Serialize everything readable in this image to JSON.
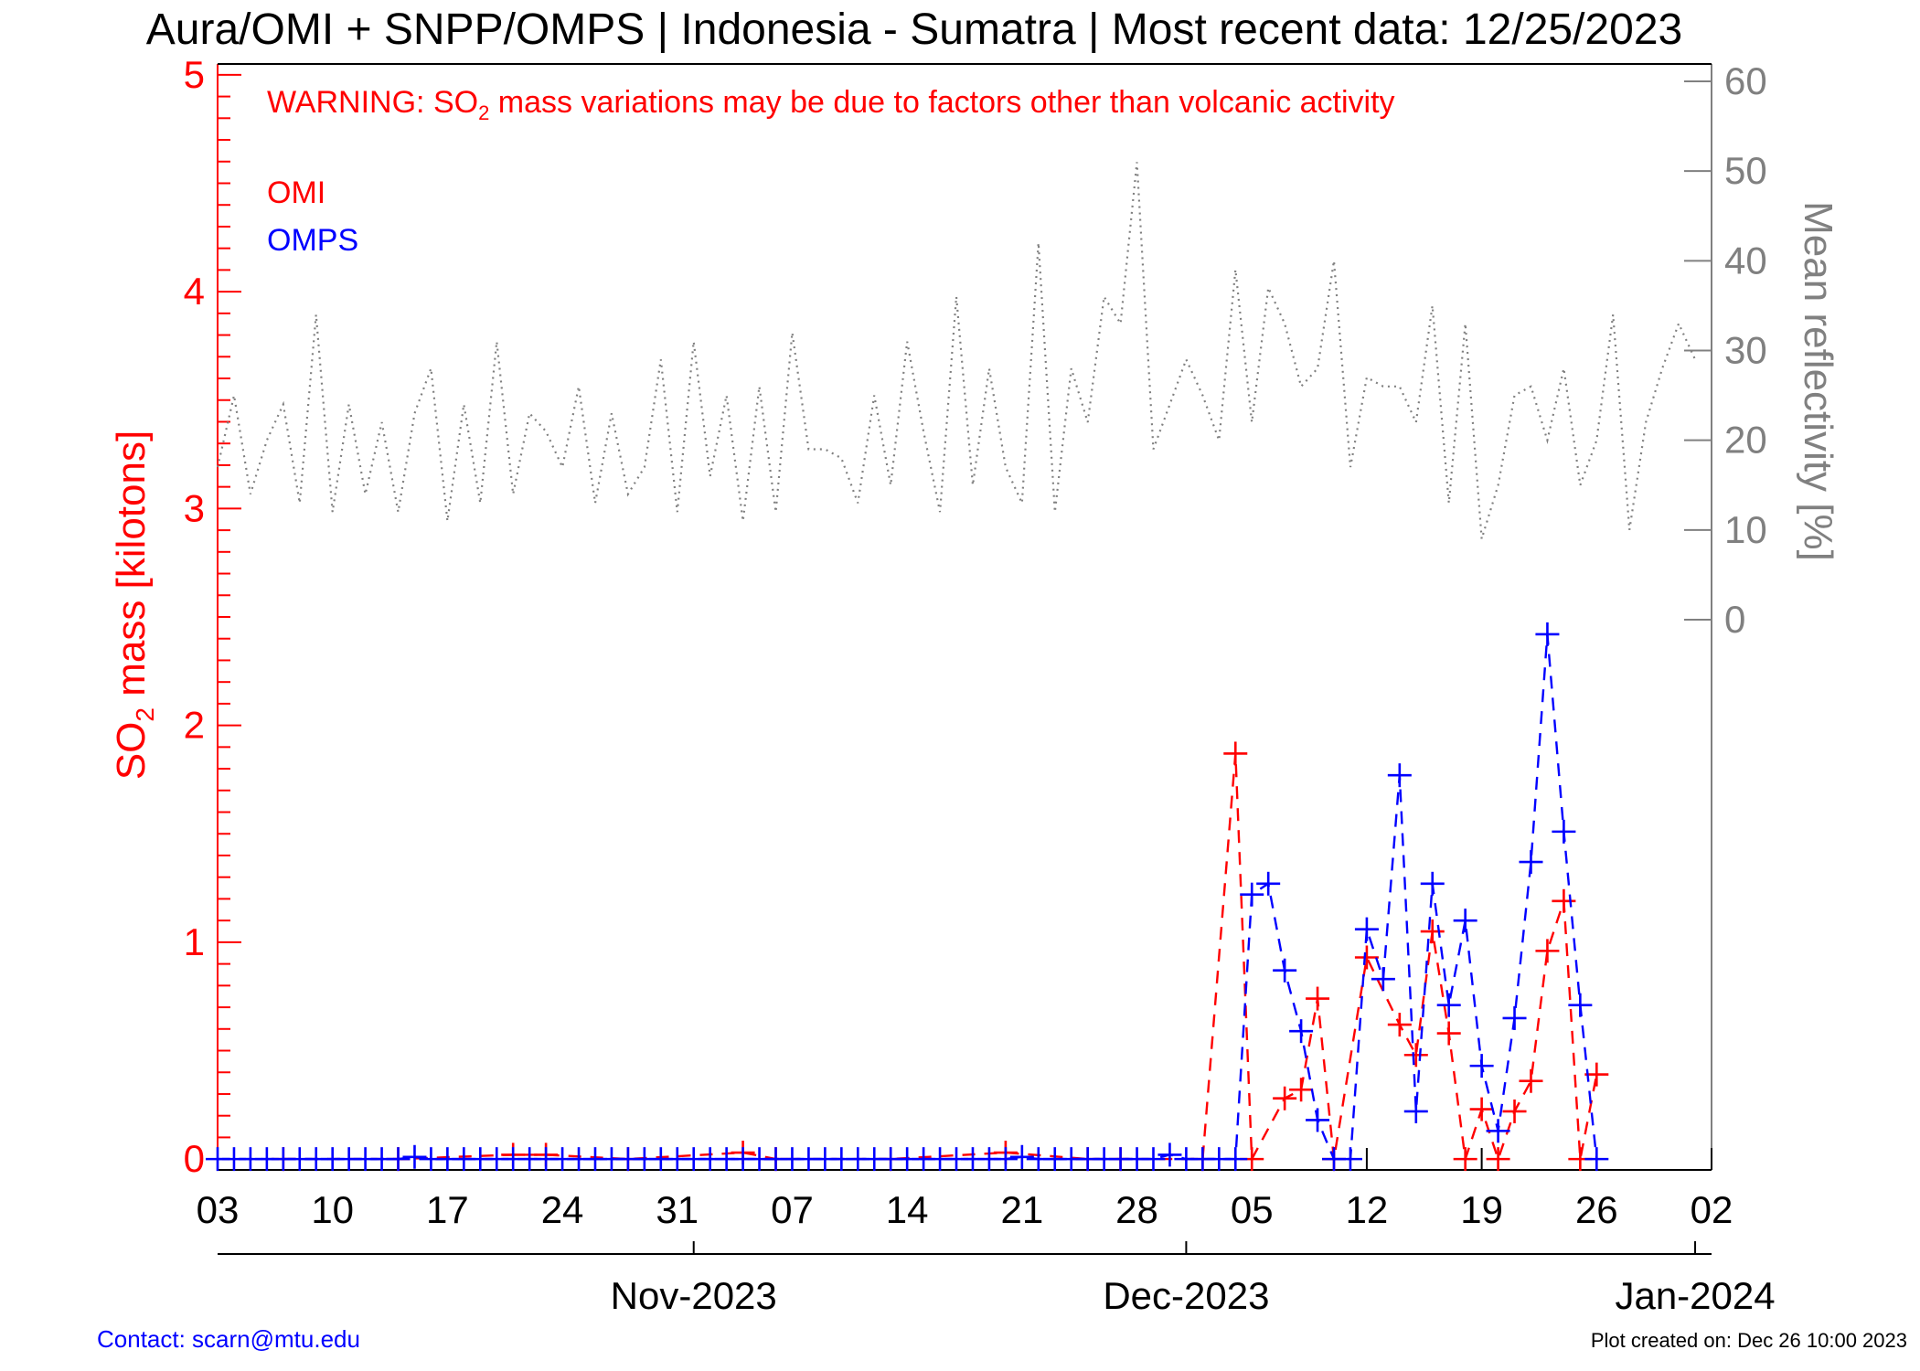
{
  "chart_data": {
    "type": "line",
    "title": "Aura/OMI + SNPP/OMPS | Indonesia - Sumatra | Most recent data: 12/25/2023",
    "warning": {
      "prefix": "WARNING: SO",
      "subscript": "2",
      "suffix": " mass variations may be due to factors other than volcanic activity"
    },
    "ylabel": {
      "prefix": "SO",
      "subscript": "2",
      "suffix": " mass [kilotons]"
    },
    "y2label": "Mean reflectivity [%]",
    "ylim": [
      -0.05,
      5.05
    ],
    "y2lim": [
      0,
      60
    ],
    "y_ticks": [
      "0",
      "1",
      "2",
      "3",
      "4",
      "5"
    ],
    "y2_ticks": [
      "0",
      "10",
      "20",
      "30",
      "40",
      "50",
      "60"
    ],
    "xlim": [
      "2023-10-03",
      "2024-01-02"
    ],
    "x_ticks": [
      {
        "date": "2023-10-03",
        "label": "03"
      },
      {
        "date": "2023-10-10",
        "label": "10"
      },
      {
        "date": "2023-10-17",
        "label": "17"
      },
      {
        "date": "2023-10-24",
        "label": "24"
      },
      {
        "date": "2023-10-31",
        "label": "31"
      },
      {
        "date": "2023-11-07",
        "label": "07"
      },
      {
        "date": "2023-11-14",
        "label": "14"
      },
      {
        "date": "2023-11-21",
        "label": "21"
      },
      {
        "date": "2023-11-28",
        "label": "28"
      },
      {
        "date": "2023-12-05",
        "label": "05"
      },
      {
        "date": "2023-12-12",
        "label": "12"
      },
      {
        "date": "2023-12-19",
        "label": "19"
      },
      {
        "date": "2023-12-26",
        "label": "26"
      },
      {
        "date": "2024-01-02",
        "label": "02"
      }
    ],
    "month_ticks": [
      {
        "date": "2023-11-01",
        "label": "Nov-2023"
      },
      {
        "date": "2023-12-01",
        "label": "Dec-2023"
      },
      {
        "date": "2024-01-01",
        "label": "Jan-2024"
      }
    ],
    "legend": [
      {
        "name": "OMI",
        "color": "#ff0000"
      },
      {
        "name": "OMPS",
        "color": "#0000ff"
      }
    ],
    "series": [
      {
        "name": "OMI",
        "color": "#ff0000",
        "points": [
          [
            "2023-10-07",
            0.0
          ],
          [
            "2023-10-14",
            0.0
          ],
          [
            "2023-10-21",
            0.02
          ],
          [
            "2023-10-23",
            0.02
          ],
          [
            "2023-10-28",
            0.0
          ],
          [
            "2023-11-04",
            0.03
          ],
          [
            "2023-11-06",
            0.0
          ],
          [
            "2023-11-13",
            0.0
          ],
          [
            "2023-11-20",
            0.03
          ],
          [
            "2023-11-25",
            0.0
          ],
          [
            "2023-11-27",
            0.0
          ],
          [
            "2023-12-02",
            0.0
          ],
          [
            "2023-12-04",
            1.87
          ],
          [
            "2023-12-05",
            0.0
          ],
          [
            "2023-12-07",
            0.28
          ],
          [
            "2023-12-08",
            0.32
          ],
          [
            "2023-12-09",
            0.74
          ],
          [
            "2023-12-10",
            0.0
          ],
          [
            "2023-12-12",
            0.93
          ],
          [
            "2023-12-14",
            0.62
          ],
          [
            "2023-12-15",
            0.48
          ],
          [
            "2023-12-16",
            1.05
          ],
          [
            "2023-12-17",
            0.58
          ],
          [
            "2023-12-18",
            0.0
          ],
          [
            "2023-12-19",
            0.23
          ],
          [
            "2023-12-20",
            0.0
          ],
          [
            "2023-12-21",
            0.22
          ],
          [
            "2023-12-22",
            0.36
          ],
          [
            "2023-12-23",
            0.96
          ],
          [
            "2023-12-24",
            1.19
          ],
          [
            "2023-12-25",
            0.0
          ],
          [
            "2023-12-26",
            0.39
          ]
        ]
      },
      {
        "name": "OMPS",
        "color": "#0000ff",
        "points": [
          [
            "2023-10-03",
            0.0
          ],
          [
            "2023-10-04",
            0.0
          ],
          [
            "2023-10-05",
            0.0
          ],
          [
            "2023-10-06",
            0.0
          ],
          [
            "2023-10-07",
            0.0
          ],
          [
            "2023-10-08",
            0.0
          ],
          [
            "2023-10-09",
            0.0
          ],
          [
            "2023-10-10",
            0.0
          ],
          [
            "2023-10-11",
            0.0
          ],
          [
            "2023-10-12",
            0.0
          ],
          [
            "2023-10-13",
            0.0
          ],
          [
            "2023-10-14",
            0.0
          ],
          [
            "2023-10-15",
            0.01
          ],
          [
            "2023-10-16",
            0.0
          ],
          [
            "2023-10-17",
            0.0
          ],
          [
            "2023-10-18",
            0.0
          ],
          [
            "2023-10-19",
            0.0
          ],
          [
            "2023-10-20",
            0.0
          ],
          [
            "2023-10-21",
            0.0
          ],
          [
            "2023-10-22",
            0.0
          ],
          [
            "2023-10-23",
            0.0
          ],
          [
            "2023-10-24",
            0.0
          ],
          [
            "2023-10-25",
            0.0
          ],
          [
            "2023-10-26",
            0.0
          ],
          [
            "2023-10-27",
            0.0
          ],
          [
            "2023-10-28",
            0.0
          ],
          [
            "2023-10-29",
            0.0
          ],
          [
            "2023-10-30",
            0.0
          ],
          [
            "2023-10-31",
            0.0
          ],
          [
            "2023-11-01",
            0.0
          ],
          [
            "2023-11-02",
            0.0
          ],
          [
            "2023-11-03",
            0.0
          ],
          [
            "2023-11-04",
            0.0
          ],
          [
            "2023-11-05",
            0.0
          ],
          [
            "2023-11-06",
            0.0
          ],
          [
            "2023-11-07",
            0.0
          ],
          [
            "2023-11-08",
            0.0
          ],
          [
            "2023-11-09",
            0.0
          ],
          [
            "2023-11-10",
            0.0
          ],
          [
            "2023-11-11",
            0.0
          ],
          [
            "2023-11-12",
            0.0
          ],
          [
            "2023-11-13",
            0.0
          ],
          [
            "2023-11-14",
            0.0
          ],
          [
            "2023-11-15",
            0.0
          ],
          [
            "2023-11-16",
            0.0
          ],
          [
            "2023-11-17",
            0.0
          ],
          [
            "2023-11-18",
            0.0
          ],
          [
            "2023-11-19",
            0.0
          ],
          [
            "2023-11-20",
            0.0
          ],
          [
            "2023-11-21",
            0.01
          ],
          [
            "2023-11-22",
            0.0
          ],
          [
            "2023-11-23",
            0.0
          ],
          [
            "2023-11-24",
            0.0
          ],
          [
            "2023-11-25",
            0.0
          ],
          [
            "2023-11-26",
            0.0
          ],
          [
            "2023-11-27",
            0.0
          ],
          [
            "2023-11-28",
            0.0
          ],
          [
            "2023-11-29",
            0.0
          ],
          [
            "2023-11-30",
            0.02
          ],
          [
            "2023-12-01",
            0.0
          ],
          [
            "2023-12-02",
            0.0
          ],
          [
            "2023-12-03",
            0.0
          ],
          [
            "2023-12-04",
            0.0
          ],
          [
            "2023-12-05",
            1.22
          ],
          [
            "2023-12-06",
            1.27
          ],
          [
            "2023-12-07",
            0.87
          ],
          [
            "2023-12-08",
            0.59
          ],
          [
            "2023-12-09",
            0.18
          ],
          [
            "2023-12-10",
            0.0
          ],
          [
            "2023-12-11",
            0.0
          ],
          [
            "2023-12-12",
            1.06
          ],
          [
            "2023-12-13",
            0.83
          ],
          [
            "2023-12-14",
            1.77
          ],
          [
            "2023-12-15",
            0.22
          ],
          [
            "2023-12-16",
            1.27
          ],
          [
            "2023-12-17",
            0.71
          ],
          [
            "2023-12-18",
            1.1
          ],
          [
            "2023-12-19",
            0.43
          ],
          [
            "2023-12-20",
            0.13
          ],
          [
            "2023-12-21",
            0.65
          ],
          [
            "2023-12-22",
            1.37
          ],
          [
            "2023-12-23",
            2.42
          ],
          [
            "2023-12-24",
            1.51
          ],
          [
            "2023-12-25",
            0.71
          ],
          [
            "2023-12-26",
            0.0
          ]
        ]
      },
      {
        "name": "Mean reflectivity",
        "axis": "y2",
        "color": "#808080",
        "values": [
          17,
          25,
          14,
          20,
          24,
          13,
          34,
          12,
          24,
          14,
          22,
          12,
          23,
          28,
          11,
          24,
          13,
          31,
          14,
          23,
          21,
          17,
          26,
          13,
          23,
          14,
          17,
          29,
          12,
          31,
          16,
          25,
          11,
          26,
          12,
          32,
          19,
          19,
          18,
          13,
          25,
          15,
          31,
          21,
          12,
          36,
          15,
          28,
          17,
          13,
          42,
          12,
          28,
          22,
          36,
          33,
          51,
          19,
          24,
          29,
          25,
          20,
          39,
          22,
          37,
          33,
          26,
          28,
          40,
          17,
          27,
          26,
          26,
          22,
          35,
          13,
          33,
          9,
          15,
          25,
          26,
          20,
          28,
          15,
          20,
          34,
          10,
          22,
          28,
          33,
          29
        ]
      }
    ],
    "footer": {
      "contact": "Contact: scarn@mtu.edu",
      "created": "Plot created on: Dec 26 10:00 2023"
    }
  }
}
